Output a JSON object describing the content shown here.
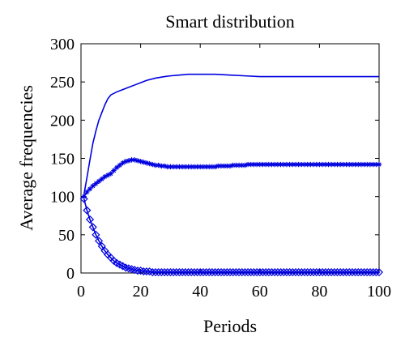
{
  "chart_data": {
    "type": "line",
    "title": "Smart distribution",
    "xlabel": "Periods",
    "ylabel": "Average frequencies",
    "xlim": [
      0,
      100
    ],
    "ylim": [
      0,
      300
    ],
    "xticks": [
      0,
      20,
      40,
      60,
      80,
      100
    ],
    "yticks": [
      0,
      50,
      100,
      150,
      200,
      250,
      300
    ],
    "grid": false,
    "line_color": "#0000e0",
    "series": [
      {
        "marker": "none",
        "x": [
          1,
          2,
          3,
          4,
          5,
          6,
          7,
          8,
          9,
          10,
          12,
          14,
          16,
          18,
          20,
          22,
          25,
          28,
          30,
          33,
          36,
          40,
          45,
          50,
          55,
          60,
          65,
          70,
          75,
          80,
          85,
          90,
          95,
          100
        ],
        "values": [
          103,
          125,
          148,
          170,
          186,
          200,
          210,
          220,
          228,
          233,
          237,
          240,
          243,
          246,
          249,
          252,
          255,
          257,
          258,
          259,
          260,
          260,
          260,
          259,
          258,
          257,
          257,
          257,
          257,
          257,
          257,
          257,
          257,
          257
        ]
      },
      {
        "marker": "star",
        "x": [
          1,
          2,
          3,
          4,
          5,
          6,
          7,
          8,
          9,
          10,
          11,
          12,
          13,
          14,
          15,
          16,
          17,
          18,
          19,
          20,
          21,
          22,
          23,
          24,
          25,
          26,
          27,
          28,
          29,
          30,
          31,
          32,
          33,
          34,
          35,
          36,
          37,
          38,
          39,
          40,
          41,
          42,
          43,
          44,
          45,
          46,
          47,
          48,
          49,
          50,
          51,
          52,
          53,
          54,
          55,
          56,
          57,
          58,
          59,
          60,
          61,
          62,
          63,
          64,
          65,
          66,
          67,
          68,
          69,
          70,
          71,
          72,
          73,
          74,
          75,
          76,
          77,
          78,
          79,
          80,
          81,
          82,
          83,
          84,
          85,
          86,
          87,
          88,
          89,
          90,
          91,
          92,
          93,
          94,
          95,
          96,
          97,
          98,
          99,
          100
        ],
        "values": [
          100,
          106,
          110,
          114,
          117,
          120,
          123,
          126,
          128,
          130,
          134,
          138,
          141,
          144,
          146,
          147,
          148,
          148,
          147,
          146,
          145,
          144,
          143,
          142,
          141,
          141,
          140,
          140,
          139,
          139,
          139,
          139,
          139,
          139,
          139,
          139,
          139,
          139,
          139,
          139,
          139,
          139,
          139,
          139,
          139,
          140,
          140,
          140,
          140,
          140,
          141,
          141,
          141,
          141,
          141,
          142,
          142,
          142,
          142,
          142,
          142,
          142,
          142,
          142,
          142,
          142,
          142,
          142,
          142,
          142,
          142,
          142,
          142,
          142,
          142,
          142,
          142,
          142,
          142,
          142,
          142,
          142,
          142,
          142,
          142,
          142,
          142,
          142,
          142,
          142,
          142,
          142,
          142,
          142,
          142,
          142,
          142,
          142,
          142,
          142
        ]
      },
      {
        "marker": "diamond",
        "x": [
          1,
          2,
          3,
          4,
          5,
          6,
          7,
          8,
          9,
          10,
          11,
          12,
          13,
          14,
          15,
          16,
          17,
          18,
          19,
          20,
          21,
          22,
          23,
          24,
          25,
          26,
          27,
          28,
          29,
          30,
          31,
          32,
          33,
          34,
          35,
          36,
          37,
          38,
          39,
          40,
          41,
          42,
          43,
          44,
          45,
          46,
          47,
          48,
          49,
          50,
          51,
          52,
          53,
          54,
          55,
          56,
          57,
          58,
          59,
          60,
          61,
          62,
          63,
          64,
          65,
          66,
          67,
          68,
          69,
          70,
          71,
          72,
          73,
          74,
          75,
          76,
          77,
          78,
          79,
          80,
          81,
          82,
          83,
          84,
          85,
          86,
          87,
          88,
          89,
          90,
          91,
          92,
          93,
          94,
          95,
          96,
          97,
          98,
          99,
          100
        ],
        "values": [
          97,
          82,
          70,
          60,
          50,
          42,
          35,
          29,
          24,
          20,
          16,
          13,
          11,
          9,
          7,
          6,
          5,
          4,
          3,
          3,
          2,
          2,
          2,
          1,
          1,
          1,
          1,
          1,
          1,
          1,
          1,
          1,
          1,
          1,
          1,
          1,
          1,
          1,
          1,
          1,
          1,
          1,
          1,
          1,
          1,
          1,
          1,
          1,
          1,
          1,
          1,
          1,
          1,
          1,
          1,
          1,
          1,
          1,
          1,
          1,
          1,
          1,
          1,
          1,
          1,
          1,
          1,
          1,
          1,
          1,
          1,
          1,
          1,
          1,
          1,
          1,
          1,
          1,
          1,
          1,
          1,
          1,
          1,
          1,
          1,
          1,
          1,
          1,
          1,
          1,
          1,
          1,
          1,
          1,
          1,
          1,
          1,
          1,
          1,
          1
        ]
      }
    ]
  }
}
